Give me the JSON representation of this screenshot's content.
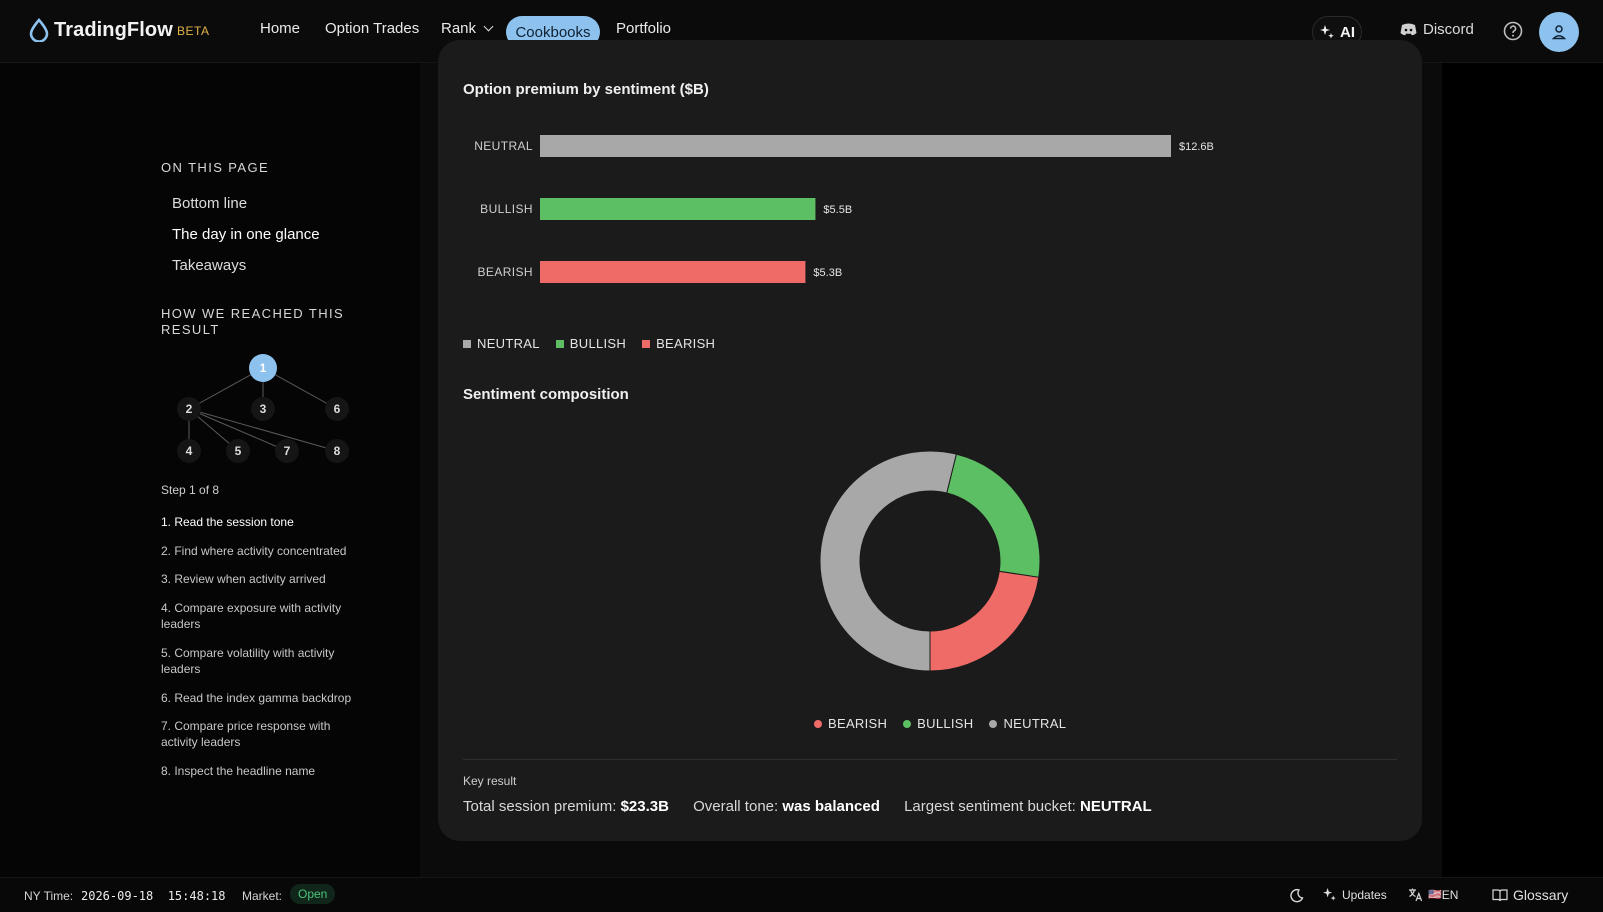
{
  "nav": {
    "brand": "TradingFlow",
    "beta": "BETA",
    "items": [
      "Home",
      "Option Trades",
      "Rank",
      "Cookbooks",
      "Portfolio"
    ],
    "ai_label": "AI",
    "discord_label": "Discord"
  },
  "sidebar": {
    "on_this_page_heading": "ON THIS PAGE",
    "toc": [
      "Bottom line",
      "The day in one glance",
      "Takeaways"
    ],
    "how_heading_line1": "HOW WE REACHED THIS",
    "how_heading_line2": "RESULT",
    "graph_nodes": [
      "1",
      "2",
      "3",
      "6",
      "4",
      "5",
      "7",
      "8"
    ],
    "step_indicator": "Step 1 of 8",
    "steps": [
      "1.  Read the session tone",
      "2.  Find where activity concentrated",
      "3.  Review when activity arrived",
      "4.  Compare exposure with activity leaders",
      "5.  Compare volatility with activity leaders",
      "6.  Read the index gamma backdrop",
      "7.  Compare price response with activity leaders",
      "8.  Inspect the headline name"
    ]
  },
  "charts": {
    "bar_title": "Option premium by sentiment ($B)",
    "donut_title": "Sentiment composition"
  },
  "chart_data": [
    {
      "type": "bar",
      "title": "Option premium by sentiment ($B)",
      "orientation": "horizontal",
      "categories": [
        "NEUTRAL",
        "BULLISH",
        "BEARISH"
      ],
      "values": [
        12.6,
        5.5,
        5.3
      ],
      "value_labels": [
        "$12.6B",
        "$5.5B",
        "$5.3B"
      ],
      "colors": [
        "#a8a8a8",
        "#5cbf64",
        "#ef6b67"
      ],
      "legend": [
        "NEUTRAL",
        "BULLISH",
        "BEARISH"
      ],
      "legend_position": "bottom-left",
      "grid": false
    },
    {
      "type": "pie",
      "title": "Sentiment composition",
      "donut": true,
      "labels": [
        "BEARISH",
        "BULLISH",
        "NEUTRAL"
      ],
      "values": [
        5.3,
        5.5,
        12.6
      ],
      "colors": [
        "#ef6b67",
        "#5cbf64",
        "#a8a8a8"
      ],
      "legend_position": "bottom-center"
    }
  ],
  "key_result": {
    "label": "Key result",
    "premium_label": "Total session premium:",
    "premium_value": "$23.3B",
    "tone_label": "Overall tone:",
    "tone_value": "was balanced",
    "bucket_label": "Largest sentiment bucket:",
    "bucket_value": "NEUTRAL"
  },
  "footer": {
    "ny_time_label": "NY Time:",
    "ny_time_value": "2026-09-18  15:48:18",
    "market_label": "Market:",
    "market_status": "Open",
    "updates_label": "Updates",
    "lang_label": "EN",
    "flag": "🇺🇸",
    "glossary_label": "Glossary"
  },
  "colors": {
    "accent": "#8ec2ee",
    "neutral": "#a8a8a8",
    "bullish": "#5cbf64",
    "bearish": "#ef6b67",
    "beta": "#e0b34a"
  }
}
